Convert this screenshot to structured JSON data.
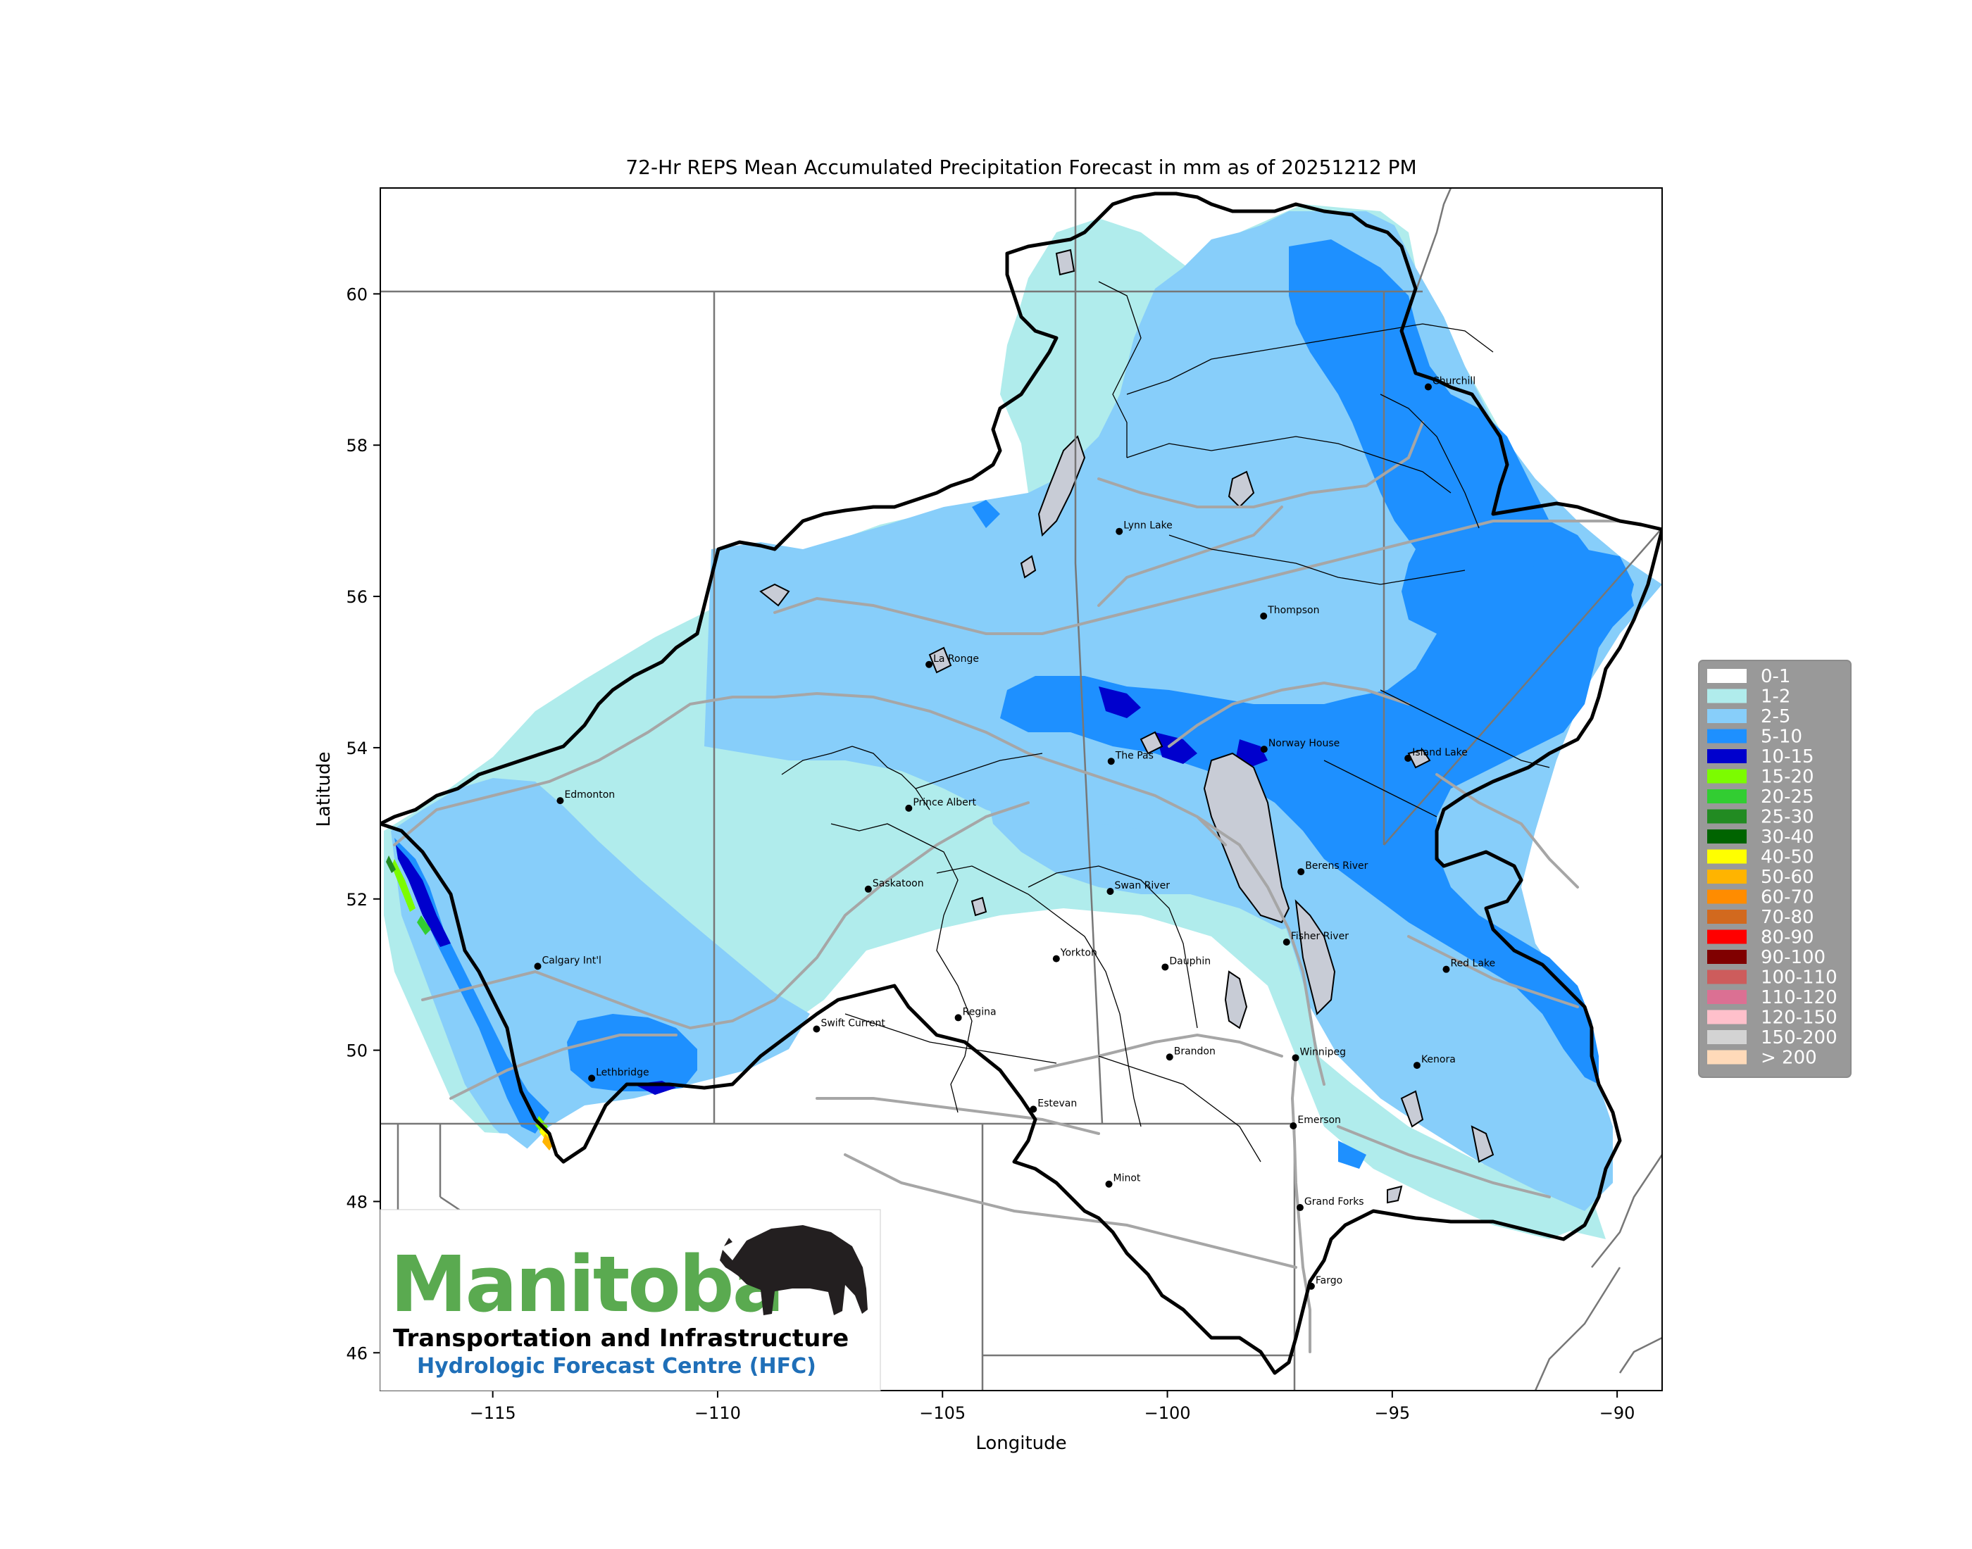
{
  "map": {
    "title": "72-Hr REPS Mean Accumulated Precipitation Forecast in mm as of 20251212 PM",
    "xlabel": "Longitude",
    "ylabel": "Latitude",
    "x_ticks": [
      "−115",
      "−110",
      "−105",
      "−100",
      "−95",
      "−90"
    ],
    "x_tick_values": [
      -115,
      -110,
      -105,
      -100,
      -95,
      -90
    ],
    "y_ticks": [
      "46",
      "48",
      "50",
      "52",
      "54",
      "56",
      "58",
      "60"
    ],
    "y_tick_values": [
      46,
      48,
      50,
      52,
      54,
      56,
      58,
      60
    ],
    "xlim": [
      -117.5,
      -89
    ],
    "ylim": [
      45.5,
      61.4
    ],
    "cities": [
      {
        "name": "Churchill",
        "lon": -94.2,
        "lat": 58.77
      },
      {
        "name": "Lynn Lake",
        "lon": -101.07,
        "lat": 56.86
      },
      {
        "name": "Thompson",
        "lon": -97.86,
        "lat": 55.74
      },
      {
        "name": "La Ronge",
        "lon": -105.3,
        "lat": 55.1
      },
      {
        "name": "The Pas",
        "lon": -101.25,
        "lat": 53.82
      },
      {
        "name": "Norway House",
        "lon": -97.85,
        "lat": 53.98
      },
      {
        "name": "Island Lake",
        "lon": -94.65,
        "lat": 53.86
      },
      {
        "name": "Edmonton",
        "lon": -113.5,
        "lat": 53.3
      },
      {
        "name": "Prince Albert",
        "lon": -105.75,
        "lat": 53.2
      },
      {
        "name": "Saskatoon",
        "lon": -106.65,
        "lat": 52.13
      },
      {
        "name": "Swan River",
        "lon": -101.27,
        "lat": 52.1
      },
      {
        "name": "Berens River",
        "lon": -97.03,
        "lat": 52.36
      },
      {
        "name": "Calgary Int'l",
        "lon": -114.0,
        "lat": 51.11
      },
      {
        "name": "Yorkton",
        "lon": -102.47,
        "lat": 51.21
      },
      {
        "name": "Dauphin",
        "lon": -100.05,
        "lat": 51.1
      },
      {
        "name": "Fisher River",
        "lon": -97.35,
        "lat": 51.43
      },
      {
        "name": "Red Lake",
        "lon": -93.8,
        "lat": 51.07
      },
      {
        "name": "Swift Current",
        "lon": -107.8,
        "lat": 50.28
      },
      {
        "name": "Regina",
        "lon": -104.65,
        "lat": 50.43
      },
      {
        "name": "Brandon",
        "lon": -99.95,
        "lat": 49.91
      },
      {
        "name": "Winnipeg",
        "lon": -97.15,
        "lat": 49.9
      },
      {
        "name": "Kenora",
        "lon": -94.45,
        "lat": 49.8
      },
      {
        "name": "Lethbridge",
        "lon": -112.8,
        "lat": 49.63
      },
      {
        "name": "Estevan",
        "lon": -102.98,
        "lat": 49.22
      },
      {
        "name": "Emerson",
        "lon": -97.2,
        "lat": 49.0
      },
      {
        "name": "Minot",
        "lon": -101.3,
        "lat": 48.23
      },
      {
        "name": "Grand Forks",
        "lon": -97.05,
        "lat": 47.92
      },
      {
        "name": "Fargo",
        "lon": -96.8,
        "lat": 46.88
      }
    ]
  },
  "legend": [
    {
      "label": "0-1",
      "color": "#ffffff"
    },
    {
      "label": "1-2",
      "color": "#b0ecec"
    },
    {
      "label": "2-5",
      "color": "#87cefa"
    },
    {
      "label": "5-10",
      "color": "#1e90ff"
    },
    {
      "label": "10-15",
      "color": "#0000cd"
    },
    {
      "label": "15-20",
      "color": "#7cfc00"
    },
    {
      "label": "20-25",
      "color": "#32cd32"
    },
    {
      "label": "25-30",
      "color": "#228b22"
    },
    {
      "label": "30-40",
      "color": "#006400"
    },
    {
      "label": "40-50",
      "color": "#ffff00"
    },
    {
      "label": "50-60",
      "color": "#ffb400"
    },
    {
      "label": "60-70",
      "color": "#ff8c00"
    },
    {
      "label": "70-80",
      "color": "#d2691e"
    },
    {
      "label": "80-90",
      "color": "#ff0000"
    },
    {
      "label": "90-100",
      "color": "#800000"
    },
    {
      "label": "100-110",
      "color": "#cd5c5c"
    },
    {
      "label": "110-120",
      "color": "#db7093"
    },
    {
      "label": "120-150",
      "color": "#ffc0cb"
    },
    {
      "label": "150-200",
      "color": "#d3d3d3"
    },
    {
      "label": "> 200",
      "color": "#ffdab9"
    }
  ],
  "logo": {
    "name": "Manitoba",
    "line1": "Transportation and Infrastructure",
    "line2": "Hydrologic Forecast Centre (HFC)"
  }
}
